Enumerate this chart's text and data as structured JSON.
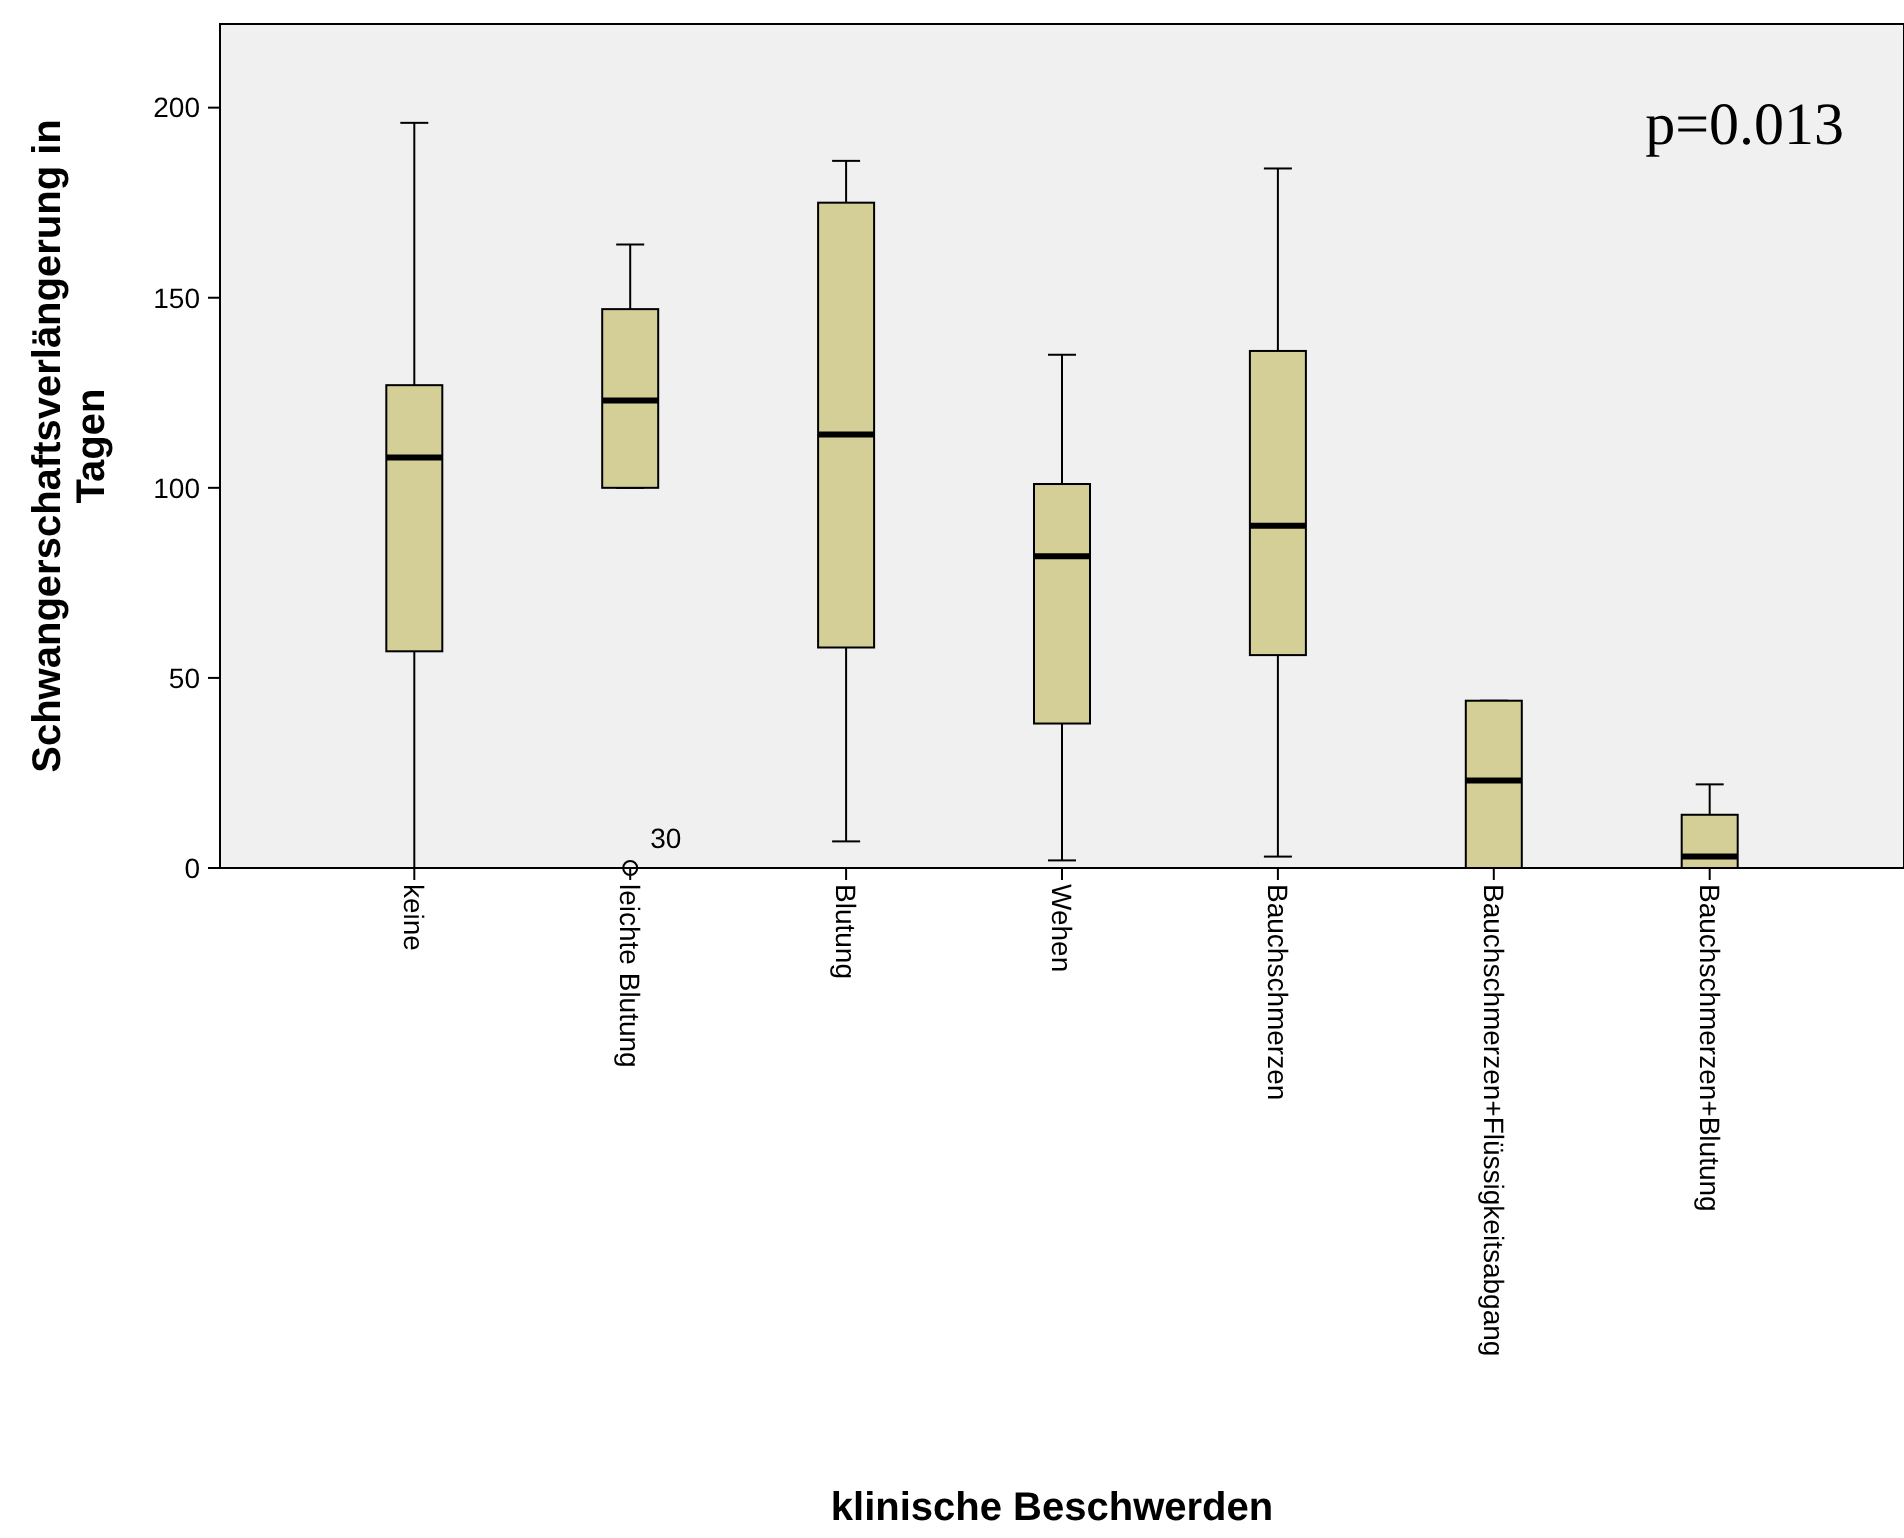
{
  "chart_data": {
    "type": "box",
    "xlabel": "klinische Beschwerden",
    "ylabel": "Schwangerschaftsverlängerung in Tagen",
    "categories": [
      "keine",
      "leichte Blutung",
      "Blutung",
      "Wehen",
      "Bauchschmerzen",
      "Bauchschmerzen+Flüssigkeitsabgang",
      "Bauchschmerzen+Blutung"
    ],
    "series": [
      {
        "color": "#d4cf96",
        "boxes": [
          {
            "low": 0,
            "q1": 57,
            "median": 108,
            "q3": 127,
            "high": 196
          },
          {
            "low": 100,
            "q1": 100,
            "median": 123,
            "q3": 147,
            "high": 164,
            "outliers": [
              0
            ]
          },
          {
            "low": 7,
            "q1": 58,
            "median": 114,
            "q3": 175,
            "high": 186
          },
          {
            "low": 2,
            "q1": 38,
            "median": 82,
            "q3": 101,
            "high": 135
          },
          {
            "low": 3,
            "q1": 56,
            "median": 90,
            "q3": 136,
            "high": 184
          },
          {
            "low": 0,
            "q1": 0,
            "median": 23,
            "q3": 44,
            "high": 44
          },
          {
            "low": 0,
            "q1": 0,
            "median": 3,
            "q3": 14,
            "high": 22
          }
        ]
      }
    ],
    "ylim": [
      0,
      222
    ],
    "yticks": [
      0,
      50,
      100,
      150,
      200
    ],
    "grid": false,
    "annotations": [
      "p=0.013",
      "30"
    ]
  }
}
